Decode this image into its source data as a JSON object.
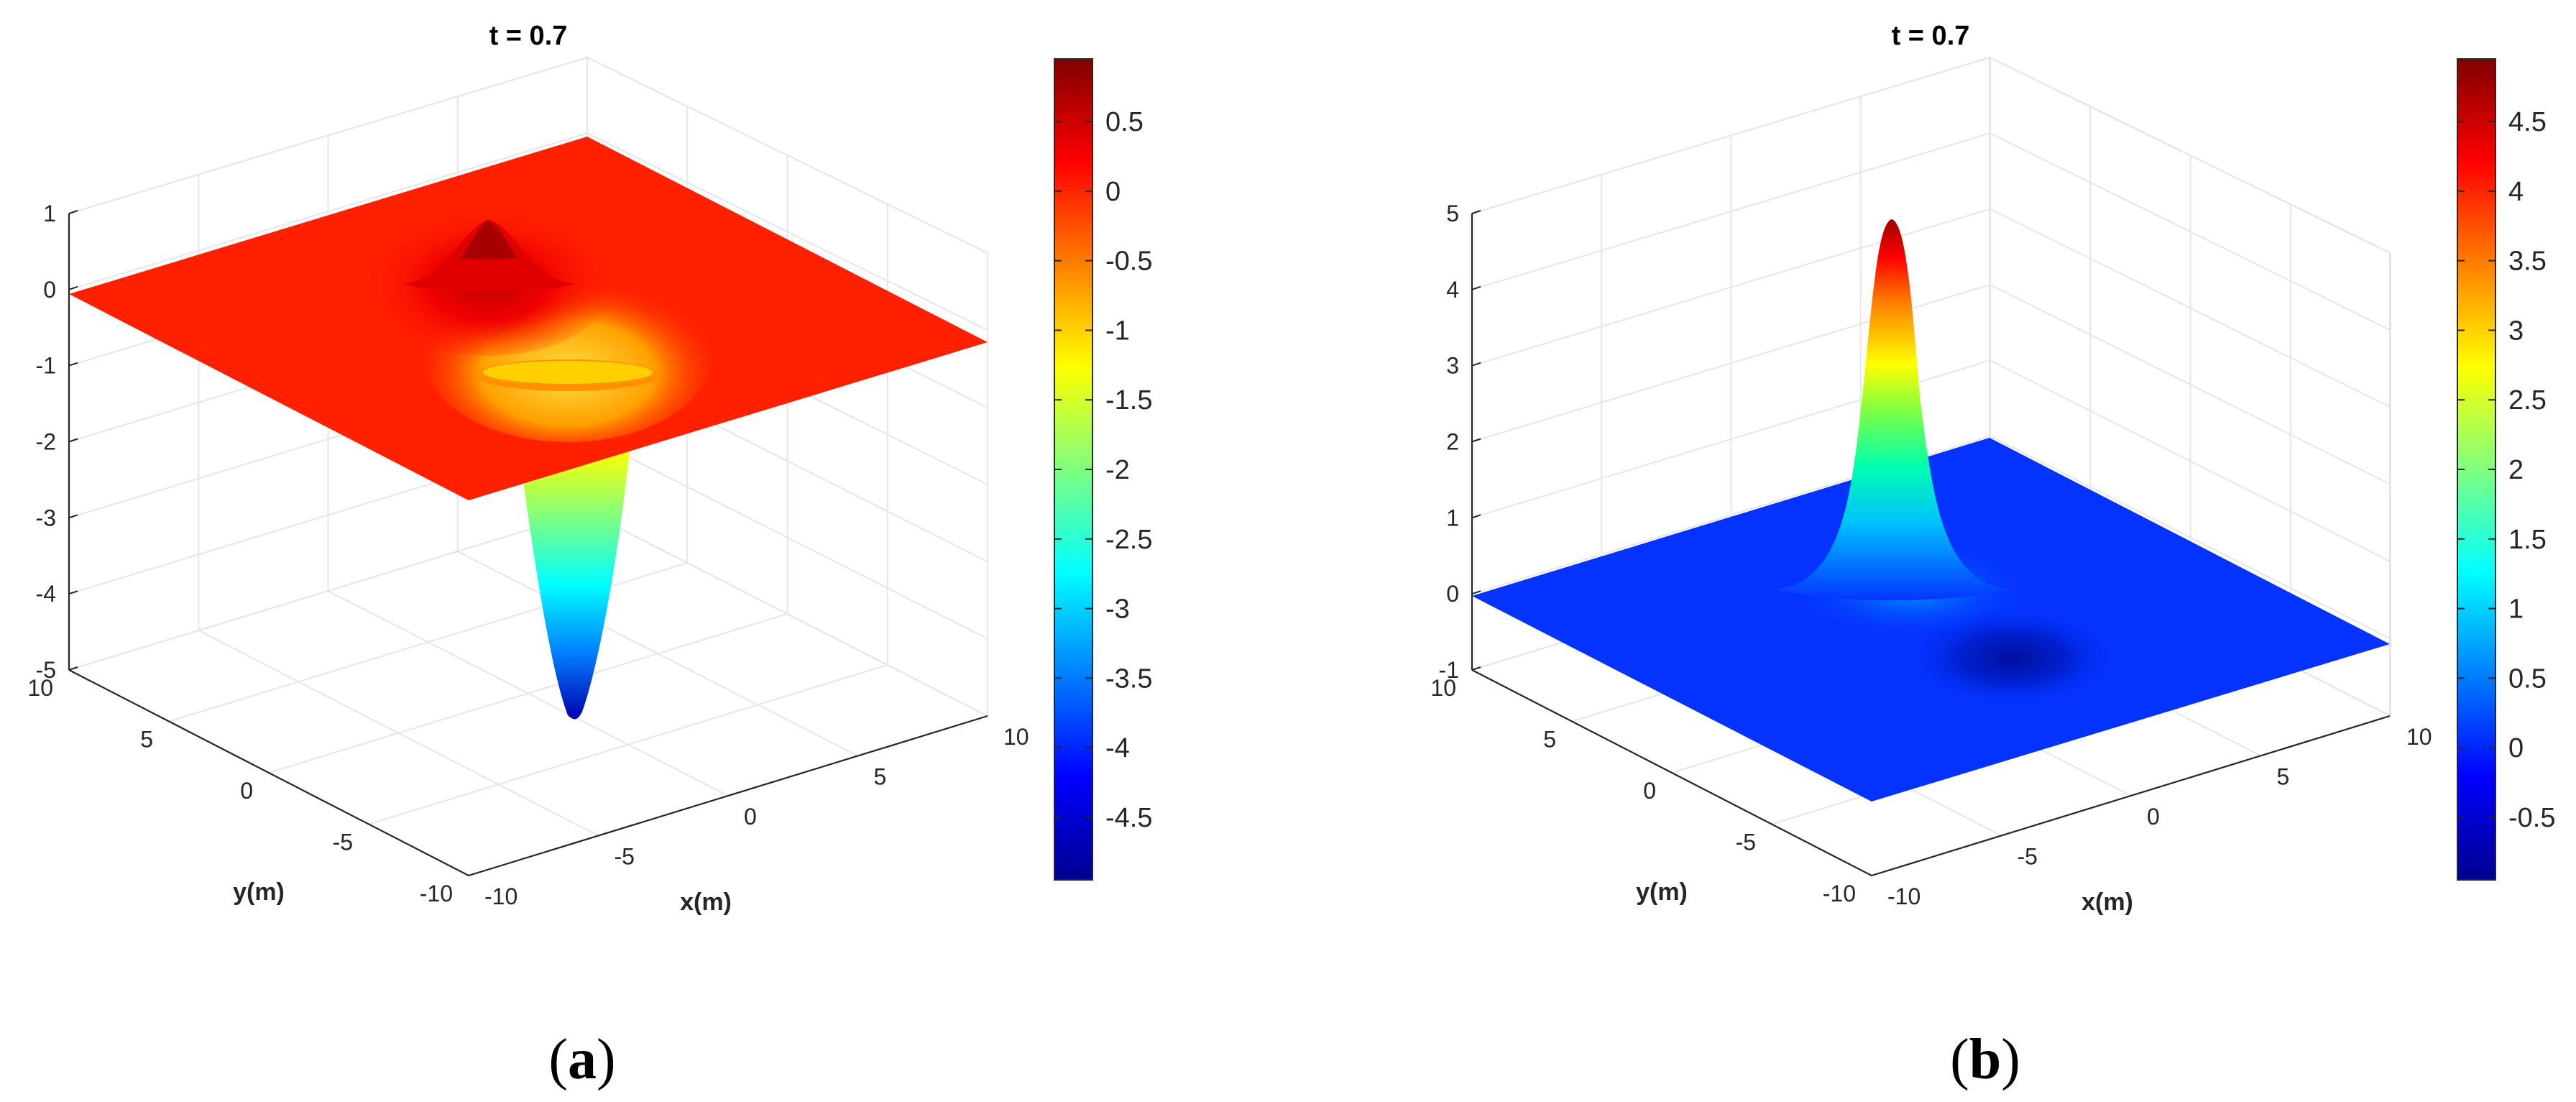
{
  "chart_data": [
    {
      "type": "surface",
      "title": "t = 0.7",
      "caption_letter": "a",
      "xlabel": "x(m)",
      "ylabel": "y(m)",
      "xlim": [
        -10,
        10
      ],
      "ylim": [
        -10,
        10
      ],
      "zlim": [
        -5,
        1
      ],
      "x_ticks": [
        "-10",
        "-5",
        "0",
        "5",
        "10"
      ],
      "y_ticks": [
        "-10",
        "-5",
        "0",
        "5",
        "10"
      ],
      "z_ticks": [
        "1",
        "0",
        "-1",
        "-2",
        "-3",
        "-4",
        "-5"
      ],
      "colorbar": {
        "colormap": "jet",
        "clim": [
          -4.95,
          0.95
        ],
        "ticks": [
          "0.5",
          "0",
          "-0.5",
          "-1",
          "-1.5",
          "-2",
          "-2.5",
          "-3",
          "-3.5",
          "-4",
          "-4.5"
        ]
      },
      "surface": {
        "baseline": 0,
        "features": [
          {
            "kind": "peak",
            "x": -2,
            "y": 3,
            "height": 0.95
          },
          {
            "kind": "trough",
            "x": 2,
            "y": -1,
            "depth": -4.95
          }
        ]
      },
      "colors": {
        "plane": "#ff2000"
      }
    },
    {
      "type": "surface",
      "title": "t = 0.7",
      "caption_letter": "b",
      "xlabel": "x(m)",
      "ylabel": "y(m)",
      "xlim": [
        -10,
        10
      ],
      "ylim": [
        -10,
        10
      ],
      "zlim": [
        -1,
        5
      ],
      "x_ticks": [
        "-10",
        "-5",
        "0",
        "5",
        "10"
      ],
      "y_ticks": [
        "-10",
        "-5",
        "0",
        "5",
        "10"
      ],
      "z_ticks": [
        "5",
        "4",
        "3",
        "2",
        "1",
        "0",
        "-1"
      ],
      "colorbar": {
        "colormap": "jet",
        "clim": [
          -0.95,
          4.95
        ],
        "ticks": [
          "4.5",
          "4",
          "3.5",
          "3",
          "2.5",
          "2",
          "1.5",
          "1",
          "0.5",
          "0",
          "-0.5"
        ]
      },
      "surface": {
        "baseline": 0,
        "features": [
          {
            "kind": "peak",
            "x": -2,
            "y": 3,
            "height": 4.95
          },
          {
            "kind": "trough",
            "x": 2,
            "y": -1,
            "depth": -0.95
          }
        ]
      },
      "colors": {
        "plane": "#0433ff"
      }
    }
  ]
}
